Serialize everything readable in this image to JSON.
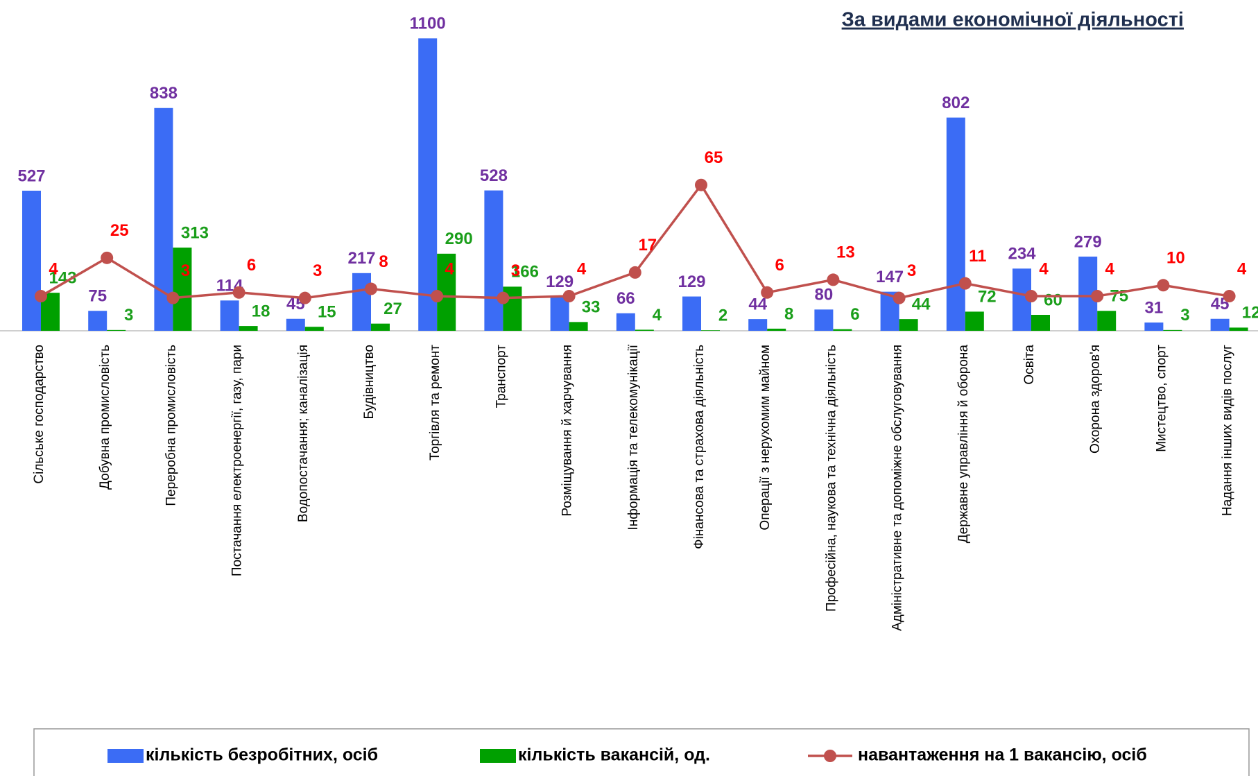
{
  "chart_data": {
    "type": "bar",
    "title": "За видами економічної діяльності",
    "categories": [
      "Сільське господарство",
      "Добувна  промисловість",
      "Переробна  промисловість",
      "Постачання електроенергії,  газу, пари",
      "Водопостачання; каналізація",
      "Будівництво",
      "Торгівля та ремонт",
      "Транспорт",
      "Розміщування й харчування",
      "Інформація та телекомунікації",
      "Фінансова та страхова діяльність",
      "Операції з нерухомим  майном",
      "Професійна, наукова та технічна діяльність",
      "Адміністративне та допоміжне обслуговування",
      "Державне  управління й оборона",
      "Освіта",
      "Охорона здоров'я",
      "Мистецтво,  спорт",
      "Надання інших видів послуг"
    ],
    "series": [
      {
        "name": "кількість безробітних, осіб",
        "type": "bar",
        "color": "#3b6cf5",
        "label_color": "#7030a0",
        "values": [
          527,
          75,
          838,
          114,
          45,
          217,
          1100,
          528,
          129,
          66,
          129,
          44,
          80,
          147,
          802,
          234,
          279,
          31,
          45
        ]
      },
      {
        "name": "кількість вакансій, од.",
        "type": "bar",
        "color": "#00a000",
        "label_color": "#1a9e1a",
        "values": [
          143,
          3,
          313,
          18,
          15,
          27,
          290,
          166,
          33,
          4,
          2,
          8,
          6,
          44,
          72,
          60,
          75,
          3,
          12
        ]
      },
      {
        "name": "навантаження на 1 вакансію, осіб",
        "type": "line",
        "axis": "y2",
        "color": "#c0504d",
        "label_color": "#ff0000",
        "values": [
          4,
          25,
          3,
          6,
          3,
          8,
          4,
          3,
          4,
          17,
          65,
          6,
          13,
          3,
          11,
          4,
          4,
          10,
          4
        ]
      }
    ],
    "ylim": [
      0,
      1200
    ],
    "y2lim": [
      -15,
      160
    ],
    "legend": "bottom"
  }
}
